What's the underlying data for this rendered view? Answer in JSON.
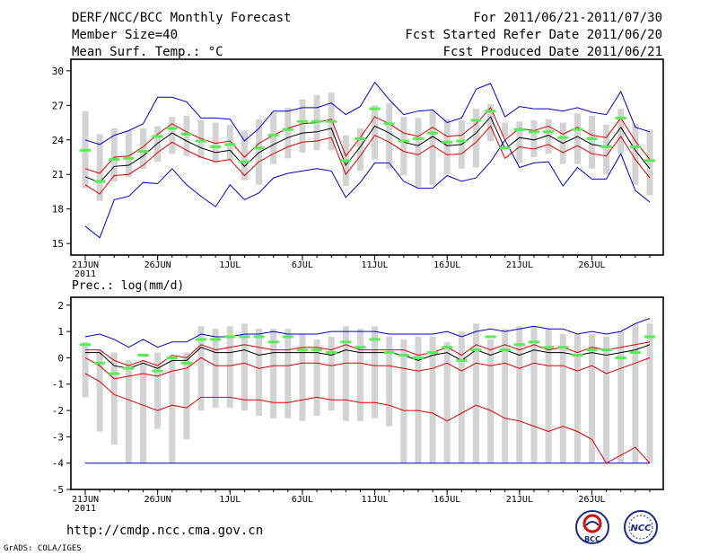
{
  "header": {
    "title": "DERF/NCC/BCC Monthly Forecast",
    "member_size": "Member Size=40",
    "variable_1": "Mean Surf. Temp.: °C",
    "period": "For 2011/06/21-2011/07/30",
    "fcst_started": "Fcst Started Refer Date 2011/06/20",
    "fcst_produced": "Fcst Produced Date 2011/06/21"
  },
  "footer": {
    "url": "http://cmdp.ncc.cma.gov.cn",
    "grads": "GrADS: COLA/IGES",
    "logo_left": "BCC",
    "logo_right": "NCC"
  },
  "colors": {
    "box": "#d3d3d3",
    "median": "#55ee55",
    "mean": "#000000",
    "inner_band": "#dd0000",
    "outer_band": "#0000cc"
  },
  "chart_data": [
    {
      "type": "line",
      "title": "Mean Surf. Temp.: °C",
      "xlabel": "",
      "ylabel": "",
      "x_tick_labels": [
        "21JUN\n2011",
        "26JUN",
        "1JUL",
        "6JUL",
        "11JUL",
        "16JUL",
        "21JUL",
        "26JUL"
      ],
      "x_tick_days": [
        0,
        5,
        10,
        15,
        20,
        25,
        30,
        35
      ],
      "days": [
        0,
        1,
        2,
        3,
        4,
        5,
        6,
        7,
        8,
        9,
        10,
        11,
        12,
        13,
        14,
        15,
        16,
        17,
        18,
        19,
        20,
        21,
        22,
        23,
        24,
        25,
        26,
        27,
        28,
        29,
        30,
        31,
        32,
        33,
        34,
        35,
        36,
        37,
        38,
        39
      ],
      "ylim": [
        14,
        31
      ],
      "yticks": [
        15,
        18,
        21,
        24,
        27,
        30
      ],
      "series": [
        {
          "name": "box_top",
          "values": [
            26.5,
            24.5,
            25.0,
            24.8,
            25.0,
            25.2,
            26.0,
            26.1,
            25.7,
            25.5,
            25.3,
            24.8,
            25.8,
            26.4,
            26.8,
            27.5,
            27.9,
            28.1,
            24.4,
            25.0,
            27.0,
            27.2,
            26.0,
            25.9,
            26.5,
            25.8,
            25.7,
            26.7,
            27.1,
            25.5,
            25.6,
            25.7,
            25.8,
            25.5,
            26.3,
            26.1,
            25.3,
            26.7,
            25.4,
            24.9
          ]
        },
        {
          "name": "box_bottom",
          "values": [
            19.8,
            18.7,
            20.4,
            20.8,
            21.5,
            22.1,
            22.8,
            22.6,
            22.4,
            22.0,
            22.2,
            20.5,
            20.1,
            21.9,
            22.4,
            22.9,
            23.1,
            23.1,
            20.0,
            21.3,
            22.3,
            21.5,
            20.9,
            19.9,
            20.1,
            21.0,
            21.5,
            21.6,
            23.9,
            24.3,
            22.0,
            22.5,
            22.8,
            21.9,
            21.9,
            21.5,
            21.0,
            22.8,
            20.1,
            19.2
          ]
        },
        {
          "name": "median",
          "values": [
            23.1,
            20.4,
            22.3,
            22.4,
            23.0,
            24.3,
            25.0,
            24.5,
            23.9,
            23.4,
            23.6,
            22.1,
            23.3,
            24.4,
            24.9,
            25.6,
            25.6,
            25.6,
            22.2,
            24.1,
            26.7,
            25.4,
            23.9,
            24.1,
            24.6,
            23.8,
            23.9,
            25.7,
            26.5,
            23.3,
            24.9,
            24.7,
            24.7,
            24.2,
            24.9,
            24.1,
            23.4,
            25.9,
            23.4,
            22.2
          ]
        },
        {
          "name": "mean",
          "values": [
            20.8,
            20.3,
            21.7,
            21.8,
            22.6,
            23.7,
            24.6,
            23.9,
            23.3,
            22.9,
            23.1,
            21.7,
            22.9,
            23.6,
            24.2,
            24.6,
            24.7,
            25.0,
            21.8,
            23.4,
            25.2,
            24.6,
            23.8,
            23.5,
            24.3,
            23.5,
            23.6,
            24.6,
            26.0,
            23.2,
            24.2,
            24.0,
            24.4,
            23.7,
            24.3,
            23.6,
            23.4,
            25.1,
            23.1,
            21.5
          ]
        },
        {
          "name": "inner_upper",
          "values": [
            21.5,
            21.1,
            22.5,
            22.6,
            23.4,
            24.5,
            25.4,
            24.7,
            24.1,
            23.7,
            23.9,
            22.5,
            23.7,
            24.4,
            25.0,
            25.4,
            25.5,
            25.8,
            22.6,
            24.2,
            26.0,
            25.4,
            24.6,
            24.3,
            25.1,
            24.3,
            24.4,
            25.4,
            26.8,
            24.0,
            25.0,
            24.8,
            25.2,
            24.5,
            25.1,
            24.4,
            24.2,
            25.9,
            23.9,
            22.3
          ]
        },
        {
          "name": "inner_lower",
          "values": [
            20.1,
            19.3,
            20.9,
            21.0,
            21.8,
            22.9,
            23.8,
            23.1,
            22.5,
            22.1,
            22.3,
            20.9,
            22.1,
            22.8,
            23.4,
            23.8,
            23.9,
            24.2,
            21.0,
            22.6,
            24.4,
            23.8,
            23.0,
            22.7,
            23.5,
            22.7,
            22.8,
            23.8,
            25.2,
            22.4,
            23.4,
            23.2,
            23.6,
            22.9,
            23.5,
            22.8,
            22.6,
            24.3,
            22.3,
            20.7
          ]
        },
        {
          "name": "outer_upper",
          "values": [
            24.0,
            23.6,
            24.4,
            24.8,
            25.4,
            27.7,
            27.7,
            27.3,
            25.9,
            25.9,
            25.8,
            23.9,
            25.0,
            26.5,
            26.5,
            26.8,
            26.8,
            27.2,
            26.2,
            26.9,
            29.0,
            27.5,
            26.2,
            26.5,
            26.6,
            25.5,
            25.9,
            28.4,
            28.9,
            26.0,
            26.9,
            26.7,
            26.7,
            26.5,
            26.8,
            26.4,
            26.2,
            28.2,
            25.1,
            24.7
          ]
        },
        {
          "name": "outer_lower",
          "values": [
            16.5,
            15.5,
            18.8,
            19.1,
            20.3,
            20.2,
            21.5,
            20.1,
            19.1,
            18.2,
            20.1,
            18.8,
            19.4,
            20.7,
            21.1,
            21.3,
            21.5,
            21.3,
            19.0,
            20.3,
            22.0,
            22.0,
            20.4,
            19.8,
            19.8,
            20.9,
            20.4,
            20.7,
            22.1,
            24.0,
            21.6,
            22.0,
            22.1,
            20.0,
            21.6,
            20.6,
            20.6,
            22.8,
            19.6,
            18.6
          ]
        }
      ]
    },
    {
      "type": "line",
      "title": "Prec.: log(mm/d)",
      "xlabel": "",
      "ylabel": "",
      "x_tick_labels": [
        "21JUN\n2011",
        "26JUN",
        "1JUL",
        "6JUL",
        "11JUL",
        "16JUL",
        "21JUL",
        "26JUL"
      ],
      "x_tick_days": [
        0,
        5,
        10,
        15,
        20,
        25,
        30,
        35
      ],
      "days": [
        0,
        1,
        2,
        3,
        4,
        5,
        6,
        7,
        8,
        9,
        10,
        11,
        12,
        13,
        14,
        15,
        16,
        17,
        18,
        19,
        20,
        21,
        22,
        23,
        24,
        25,
        26,
        27,
        28,
        29,
        30,
        31,
        32,
        33,
        34,
        35,
        36,
        37,
        38,
        39
      ],
      "ylim": [
        -5,
        2.3
      ],
      "yticks": [
        -5,
        -4,
        -3,
        -2,
        -1,
        0,
        1,
        2
      ],
      "series": [
        {
          "name": "box_top",
          "values": [
            0.6,
            0.3,
            0.2,
            -0.1,
            -0.1,
            0.2,
            -0.1,
            0.2,
            1.2,
            1.1,
            1.2,
            1.3,
            1.1,
            1.1,
            1.1,
            0.9,
            0.7,
            0.8,
            1.2,
            1.1,
            1.2,
            0.8,
            0.7,
            0.8,
            0.8,
            0.6,
            1.0,
            1.3,
            0.7,
            1.1,
            1.2,
            1.2,
            1.1,
            0.9,
            0.9,
            0.9,
            0.8,
            1.0,
            1.3,
            1.3
          ]
        },
        {
          "name": "box_bottom",
          "values": [
            -1.5,
            -2.8,
            -3.3,
            -4.0,
            -4.0,
            -2.7,
            -4.0,
            -3.1,
            -2.0,
            -1.9,
            -1.9,
            -2.0,
            -2.2,
            -2.3,
            -2.3,
            -2.4,
            -2.2,
            -2.0,
            -2.4,
            -2.4,
            -2.3,
            -2.6,
            -4.0,
            -4.0,
            -4.0,
            -4.0,
            -4.0,
            -4.0,
            -4.0,
            -4.0,
            -4.0,
            -4.0,
            -4.0,
            -4.0,
            -4.0,
            -4.0,
            -4.0,
            -4.0,
            -4.0,
            -4.0
          ]
        },
        {
          "name": "median",
          "values": [
            0.5,
            -0.2,
            -0.6,
            -0.4,
            0.1,
            -0.5,
            0.0,
            -0.2,
            0.7,
            0.7,
            0.8,
            0.8,
            0.8,
            0.6,
            0.8,
            0.3,
            0.3,
            0.2,
            0.6,
            0.4,
            0.7,
            0.2,
            0.1,
            0.0,
            0.2,
            0.4,
            -0.1,
            0.3,
            0.8,
            0.3,
            0.5,
            0.6,
            0.4,
            0.4,
            0.1,
            0.3,
            0.3,
            0.0,
            0.2,
            0.8
          ]
        },
        {
          "name": "mean",
          "values": [
            0.2,
            0.2,
            -0.3,
            -0.4,
            -0.2,
            -0.4,
            -0.1,
            -0.1,
            0.4,
            0.2,
            0.2,
            0.3,
            0.1,
            0.2,
            0.2,
            0.2,
            0.2,
            0.1,
            0.3,
            0.2,
            0.2,
            0.2,
            0.1,
            -0.1,
            0.1,
            0.2,
            -0.1,
            0.3,
            0.1,
            0.3,
            0.1,
            0.3,
            0.2,
            0.2,
            0.1,
            0.2,
            0.1,
            0.2,
            0.3,
            0.5
          ]
        },
        {
          "name": "inner_upper",
          "values": [
            0.3,
            0.3,
            -0.1,
            -0.3,
            -0.1,
            -0.3,
            0.1,
            0.0,
            0.5,
            0.3,
            0.4,
            0.5,
            0.4,
            0.3,
            0.3,
            0.4,
            0.4,
            0.3,
            0.5,
            0.3,
            0.3,
            0.3,
            0.3,
            0.1,
            0.2,
            0.4,
            0.1,
            0.5,
            0.3,
            0.5,
            0.3,
            0.5,
            0.3,
            0.4,
            0.2,
            0.4,
            0.3,
            0.4,
            0.5,
            0.6
          ]
        },
        {
          "name": "inner_lower",
          "values": [
            0.0,
            -0.3,
            -0.8,
            -0.7,
            -0.6,
            -0.7,
            -0.5,
            -0.4,
            0.0,
            -0.3,
            -0.3,
            -0.2,
            -0.4,
            -0.3,
            -0.3,
            -0.2,
            -0.2,
            -0.3,
            -0.2,
            -0.2,
            -0.3,
            -0.3,
            -0.4,
            -0.5,
            -0.4,
            -0.2,
            -0.5,
            -0.2,
            -0.3,
            -0.2,
            -0.4,
            -0.2,
            -0.3,
            -0.3,
            -0.5,
            -0.3,
            -0.6,
            -0.4,
            -0.2,
            0.0
          ]
        },
        {
          "name": "inner_lower_2",
          "values": [
            -0.6,
            -0.9,
            -1.4,
            -1.6,
            -1.8,
            -2.0,
            -1.8,
            -1.9,
            -1.5,
            -1.5,
            -1.5,
            -1.6,
            -1.6,
            -1.7,
            -1.7,
            -1.6,
            -1.5,
            -1.6,
            -1.6,
            -1.7,
            -1.7,
            -1.8,
            -2.0,
            -2.0,
            -2.1,
            -2.4,
            -2.1,
            -1.8,
            -2.0,
            -2.3,
            -2.4,
            -2.6,
            -2.8,
            -2.6,
            -2.8,
            -3.1,
            -4.0,
            -3.7,
            -3.4,
            -4.0
          ]
        },
        {
          "name": "outer_upper",
          "values": [
            0.8,
            0.9,
            0.7,
            0.4,
            0.7,
            0.4,
            0.6,
            0.6,
            0.9,
            0.8,
            0.8,
            0.9,
            0.9,
            1.0,
            0.9,
            0.9,
            0.9,
            1.0,
            1.0,
            1.0,
            1.0,
            0.9,
            0.9,
            0.9,
            0.9,
            1.0,
            0.8,
            1.0,
            1.1,
            1.0,
            1.1,
            1.2,
            1.1,
            1.1,
            0.9,
            1.0,
            0.9,
            1.0,
            1.3,
            1.5
          ]
        },
        {
          "name": "outer_lower",
          "values": [
            -4.0,
            -4.0,
            -4.0,
            -4.0,
            -4.0,
            -4.0,
            -4.0,
            -4.0,
            -4.0,
            -4.0,
            -4.0,
            -4.0,
            -4.0,
            -4.0,
            -4.0,
            -4.0,
            -4.0,
            -4.0,
            -4.0,
            -4.0,
            -4.0,
            -4.0,
            -4.0,
            -4.0,
            -4.0,
            -4.0,
            -4.0,
            -4.0,
            -4.0,
            -4.0,
            -4.0,
            -4.0,
            -4.0,
            -4.0,
            -4.0,
            -4.0,
            -4.0,
            -4.0,
            -4.0,
            -4.0
          ]
        }
      ]
    }
  ]
}
